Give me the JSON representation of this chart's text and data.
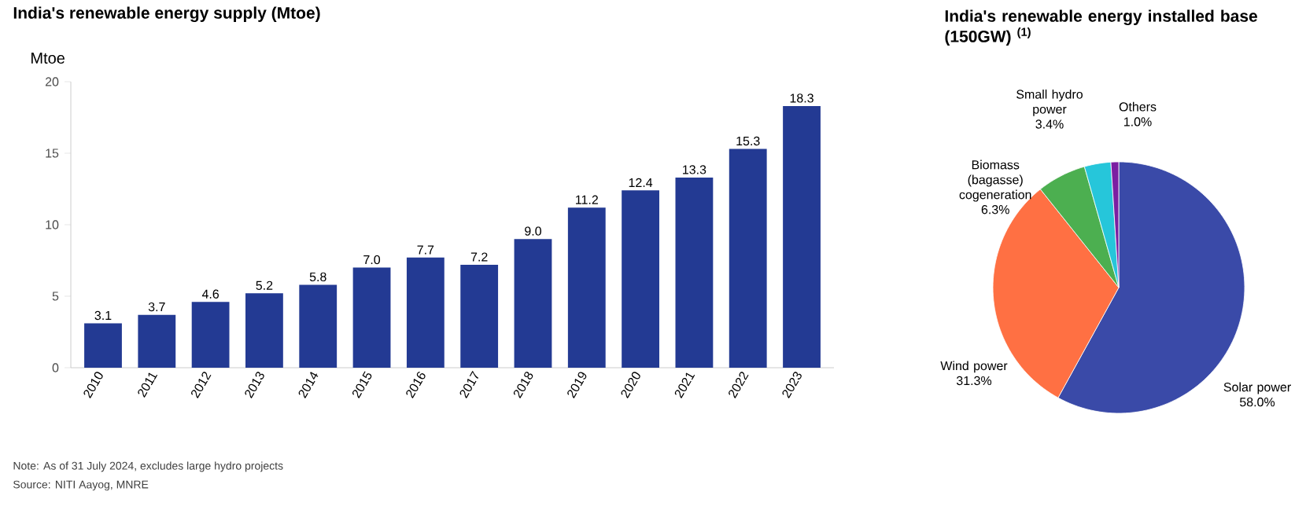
{
  "chart_data": [
    {
      "type": "bar",
      "title": "India's renewable energy supply (Mtoe)",
      "ylabel": "Mtoe",
      "categories": [
        "2010",
        "2011",
        "2012",
        "2013",
        "2014",
        "2015",
        "2016",
        "2017",
        "2018",
        "2019",
        "2020",
        "2021",
        "2022",
        "2023"
      ],
      "values": [
        3.1,
        3.7,
        4.6,
        5.2,
        5.8,
        7.0,
        7.7,
        7.2,
        9.0,
        11.2,
        12.4,
        13.3,
        15.3,
        18.3
      ],
      "value_labels": [
        "3.1",
        "3.7",
        "4.6",
        "5.2",
        "5.8",
        "7.0",
        "7.7",
        "7.2",
        "9.0",
        "11.2",
        "12.4",
        "13.3",
        "15.3",
        "18.3"
      ],
      "color": "#233a93",
      "ylim": [
        0,
        20
      ],
      "yticks": [
        0,
        5,
        10,
        15,
        20
      ],
      "annotations": [
        "Note: As of 31 July 2024, excludes large hydro projects",
        "Source: NITI Aayog, MNRE"
      ]
    },
    {
      "type": "pie",
      "title": "India's renewable energy installed base (150GW) $^{(1)}$",
      "categories": [
        "Solar power",
        "Wind power",
        "Biomass (bagasse) cogeneration",
        "Small hydro power",
        "Others"
      ],
      "values": [
        58.0,
        31.3,
        6.3,
        3.4,
        1.0
      ],
      "value_labels": [
        "58.0%",
        "31.3%",
        "6.3%",
        "3.4%",
        "1.0%"
      ],
      "colors": [
        "#3a4aa8",
        "#ff7043",
        "#4caf50",
        "#26c6da",
        "#7b1fa2"
      ]
    }
  ]
}
